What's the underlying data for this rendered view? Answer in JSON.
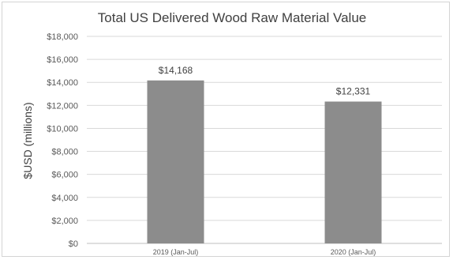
{
  "chart_data": {
    "type": "bar",
    "title": "Total US Delivered Wood Raw Material Value",
    "xlabel": "",
    "ylabel": "$USD (millions)",
    "categories": [
      "2019 (Jan-Jul)",
      "2020 (Jan-Jul)"
    ],
    "values": [
      14168,
      12331
    ],
    "data_labels": [
      "$14,168",
      "$12,331"
    ],
    "ylim": [
      0,
      18000
    ],
    "yticks": [
      0,
      2000,
      4000,
      6000,
      8000,
      10000,
      12000,
      14000,
      16000,
      18000
    ],
    "ytick_labels": [
      "$0",
      "$2,000",
      "$4,000",
      "$6,000",
      "$8,000",
      "$10,000",
      "$12,000",
      "$14,000",
      "$16,000",
      "$18,000"
    ],
    "grid": true,
    "legend": "none",
    "colors": {
      "bar": "#8c8c8c",
      "grid": "#d9d9d9",
      "axis": "#bfbfbf"
    }
  }
}
